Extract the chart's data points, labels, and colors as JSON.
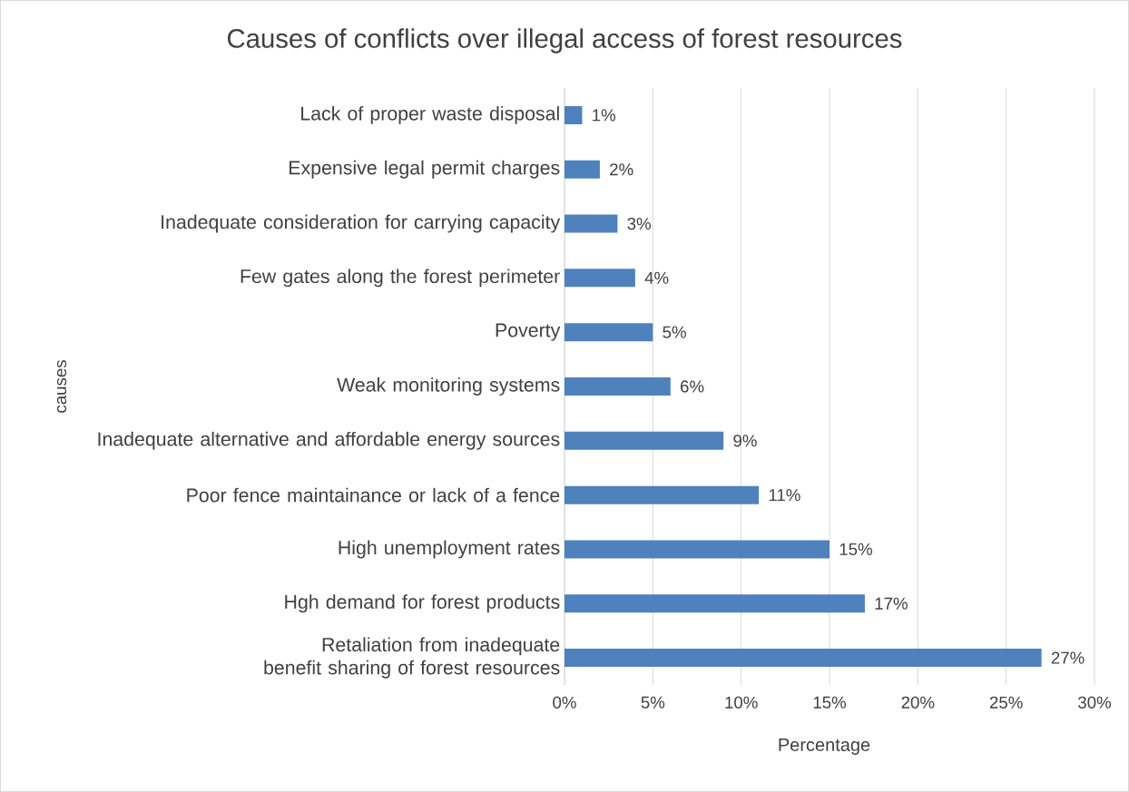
{
  "chart_data": {
    "type": "bar",
    "orientation": "horizontal",
    "title": "Causes of conflicts over illegal access of forest resources",
    "xlabel": "Percentage",
    "ylabel": "causes",
    "categories": [
      "Lack of proper waste disposal",
      "Expensive legal permit charges",
      "Inadequate consideration for carrying capacity",
      "Few gates along the forest perimeter",
      "Poverty",
      "Weak monitoring systems",
      "Inadequate alternative and affordable energy sources",
      "Poor fence maintainance or lack of a fence",
      "High unemployment rates",
      "Hgh demand for forest products",
      "Retaliation from inadequate benefit sharing of forest resources"
    ],
    "values": [
      1,
      2,
      3,
      4,
      5,
      6,
      9,
      11,
      15,
      17,
      27
    ],
    "value_labels": [
      "1%",
      "2%",
      "3%",
      "4%",
      "5%",
      "6%",
      "9%",
      "11%",
      "15%",
      "17%",
      "27%"
    ],
    "color": "#4f81bd",
    "xlim": [
      0,
      30
    ],
    "xticks": [
      {
        "value": 0,
        "label": "0%"
      },
      {
        "value": 5,
        "label": "5%"
      },
      {
        "value": 10,
        "label": "10%"
      },
      {
        "value": 15,
        "label": "15%"
      },
      {
        "value": 20,
        "label": "20%"
      },
      {
        "value": 25,
        "label": "25%"
      },
      {
        "value": 30,
        "label": "30%"
      }
    ],
    "grid": "x"
  }
}
